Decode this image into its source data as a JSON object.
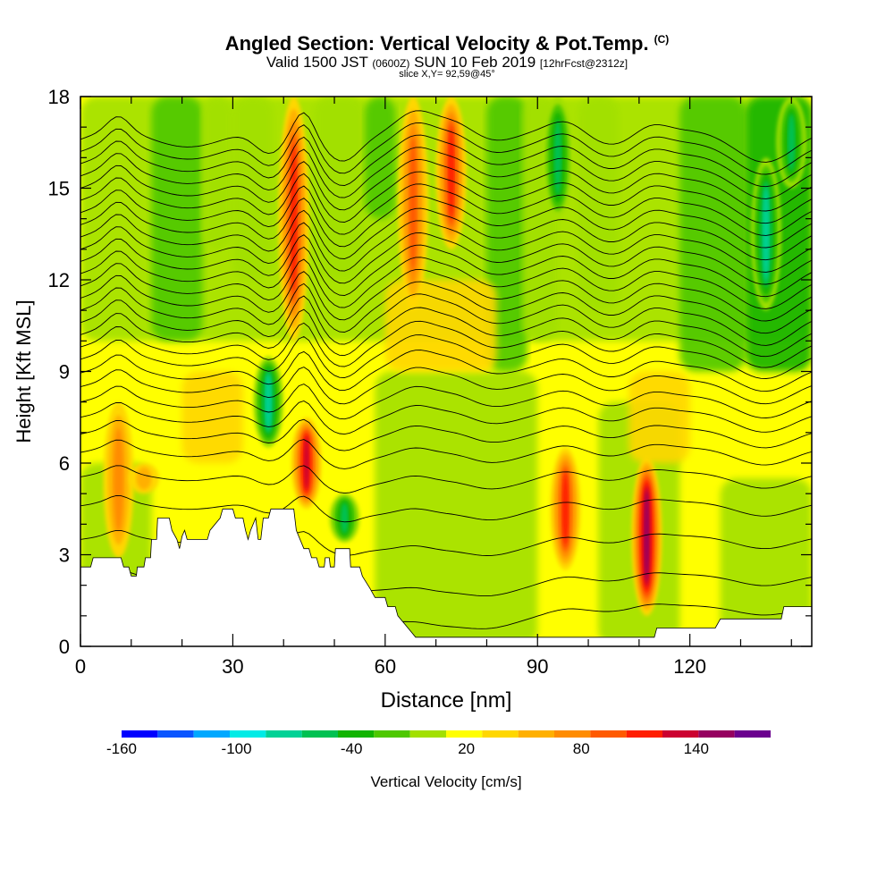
{
  "titles": {
    "main": "Angled Section: Vertical Velocity & Pot.Temp.",
    "main_tag": "(C)",
    "valid_a": "Valid 1500 JST",
    "valid_zone": "(0600Z)",
    "valid_b": "SUN 10 Feb 2019",
    "forecast": "[12hrFcst@2312z]",
    "slice": "slice X,Y= 92,59@45°"
  },
  "chart_data": {
    "type": "heatmap",
    "title": "Angled Section: Vertical Velocity & Pot.Temp.",
    "xlabel": "Distance [nm]",
    "ylabel": "Height [Kft MSL]",
    "xlim": [
      0,
      144
    ],
    "ylim": [
      0,
      18
    ],
    "x_ticks": [
      0,
      30,
      60,
      90,
      120
    ],
    "y_ticks": [
      0,
      3,
      6,
      9,
      12,
      15,
      18
    ],
    "grid": false,
    "colorbar": {
      "label": "Vertical Velocity [cm/s]",
      "placement": "bottom",
      "bins": [
        -160,
        -140,
        -120,
        -100,
        -80,
        -60,
        -40,
        -20,
        0,
        20,
        40,
        60,
        80,
        100,
        120,
        140,
        160
      ],
      "tick_labels": [
        "-160",
        "-100",
        "-40",
        "20",
        "80",
        "140"
      ],
      "colors": [
        "#0000ff",
        "#0a55ff",
        "#00a8ff",
        "#00ebe6",
        "#00d296",
        "#00c152",
        "#12b400",
        "#4ec800",
        "#a2e000",
        "#ffff00",
        "#ffd700",
        "#ffb000",
        "#ff8c00",
        "#ff5a00",
        "#ff1e00",
        "#cc0030",
        "#960060",
        "#6b008f"
      ]
    },
    "terrain_profile": [
      [
        0,
        2.6
      ],
      [
        2,
        2.6
      ],
      [
        2.5,
        2.9
      ],
      [
        8,
        2.9
      ],
      [
        8.5,
        2.6
      ],
      [
        9.5,
        2.6
      ],
      [
        10,
        2.3
      ],
      [
        11,
        2.3
      ],
      [
        11.2,
        2.6
      ],
      [
        12.5,
        2.6
      ],
      [
        12.8,
        2.9
      ],
      [
        13.8,
        2.9
      ],
      [
        14,
        3.5
      ],
      [
        15,
        3.5
      ],
      [
        15.2,
        4.2
      ],
      [
        17.5,
        4.2
      ],
      [
        18,
        3.8
      ],
      [
        19,
        3.5
      ],
      [
        19.5,
        3.2
      ],
      [
        20,
        3.6
      ],
      [
        20.5,
        3.8
      ],
      [
        21,
        3.5
      ],
      [
        25,
        3.5
      ],
      [
        25.5,
        3.8
      ],
      [
        27.5,
        4.2
      ],
      [
        28,
        4.5
      ],
      [
        30,
        4.5
      ],
      [
        30.5,
        4.2
      ],
      [
        32,
        4.2
      ],
      [
        32.5,
        3.8
      ],
      [
        33,
        3.5
      ],
      [
        33.5,
        3.8
      ],
      [
        34.5,
        4.2
      ],
      [
        35,
        3.5
      ],
      [
        35.5,
        3.5
      ],
      [
        36,
        4.2
      ],
      [
        37,
        4.2
      ],
      [
        37.5,
        4.5
      ],
      [
        42,
        4.5
      ],
      [
        42.5,
        3.8
      ],
      [
        44,
        3.2
      ],
      [
        45,
        3.2
      ],
      [
        45.5,
        2.9
      ],
      [
        46.5,
        2.9
      ],
      [
        47,
        2.6
      ],
      [
        48,
        2.6
      ],
      [
        48.2,
        2.9
      ],
      [
        49,
        2.9
      ],
      [
        49.2,
        2.6
      ],
      [
        50,
        2.6
      ],
      [
        50.2,
        3.2
      ],
      [
        53,
        3.2
      ],
      [
        53.2,
        2.6
      ],
      [
        55,
        2.6
      ],
      [
        55.5,
        2.3
      ],
      [
        57,
        1.9
      ],
      [
        58,
        1.6
      ],
      [
        59,
        1.6
      ],
      [
        60,
        1.6
      ],
      [
        60.5,
        1.3
      ],
      [
        62,
        1.3
      ],
      [
        62.5,
        1.0
      ],
      [
        64,
        0.7
      ],
      [
        65,
        0.5
      ],
      [
        66,
        0.3
      ],
      [
        70,
        0.3
      ],
      [
        80,
        0.3
      ],
      [
        105,
        0.3
      ],
      [
        113,
        0.3
      ],
      [
        113.5,
        0.6
      ],
      [
        114,
        0.6
      ],
      [
        119,
        0.6
      ],
      [
        125,
        0.6
      ],
      [
        126,
        0.9
      ],
      [
        131,
        0.9
      ],
      [
        138,
        0.9
      ],
      [
        138.5,
        1.3
      ],
      [
        144,
        1.3
      ]
    ],
    "updraft_cores": [
      {
        "x": 7.5,
        "y_min": 2.9,
        "y_max": 8,
        "peak": 60
      },
      {
        "x": 12.5,
        "y_min": 5,
        "y_max": 6,
        "peak": 40
      },
      {
        "x": 42,
        "y_min": 10,
        "y_max": 18,
        "peak": 100
      },
      {
        "x": 44.5,
        "y_min": 4.5,
        "y_max": 7.5,
        "peak": 120
      },
      {
        "x": 65.5,
        "y_min": 11,
        "y_max": 18,
        "peak": 80
      },
      {
        "x": 73,
        "y_min": 13,
        "y_max": 18,
        "peak": 100
      },
      {
        "x": 95.5,
        "y_min": 2.5,
        "y_max": 6.5,
        "peak": 100
      },
      {
        "x": 111.5,
        "y_min": 1,
        "y_max": 6.2,
        "peak": 140
      }
    ],
    "downdraft_cores": [
      {
        "x": 37,
        "y_min": 6.5,
        "y_max": 9.5,
        "peak": -100
      },
      {
        "x": 52,
        "y_min": 3.4,
        "y_max": 5,
        "peak": -80
      },
      {
        "x": 94,
        "y_min": 14,
        "y_max": 18,
        "peak": -80
      },
      {
        "x": 135,
        "y_min": 11,
        "y_max": 16,
        "peak": -100
      },
      {
        "x": 140,
        "y_min": 15,
        "y_max": 18,
        "peak": -80
      }
    ],
    "isentrope_spacing_kft": [
      1.25,
      1.0,
      1.25,
      1.1,
      0.95,
      0.8,
      0.6,
      0.55,
      0.5,
      0.5,
      0.45,
      0.45,
      0.4,
      0.4,
      0.4,
      0.4,
      0.4,
      0.4,
      0.4,
      0.4,
      0.4,
      0.4,
      0.4,
      0.4,
      0.4,
      0.4,
      0.4,
      0.4,
      0.4,
      0.4
    ]
  }
}
